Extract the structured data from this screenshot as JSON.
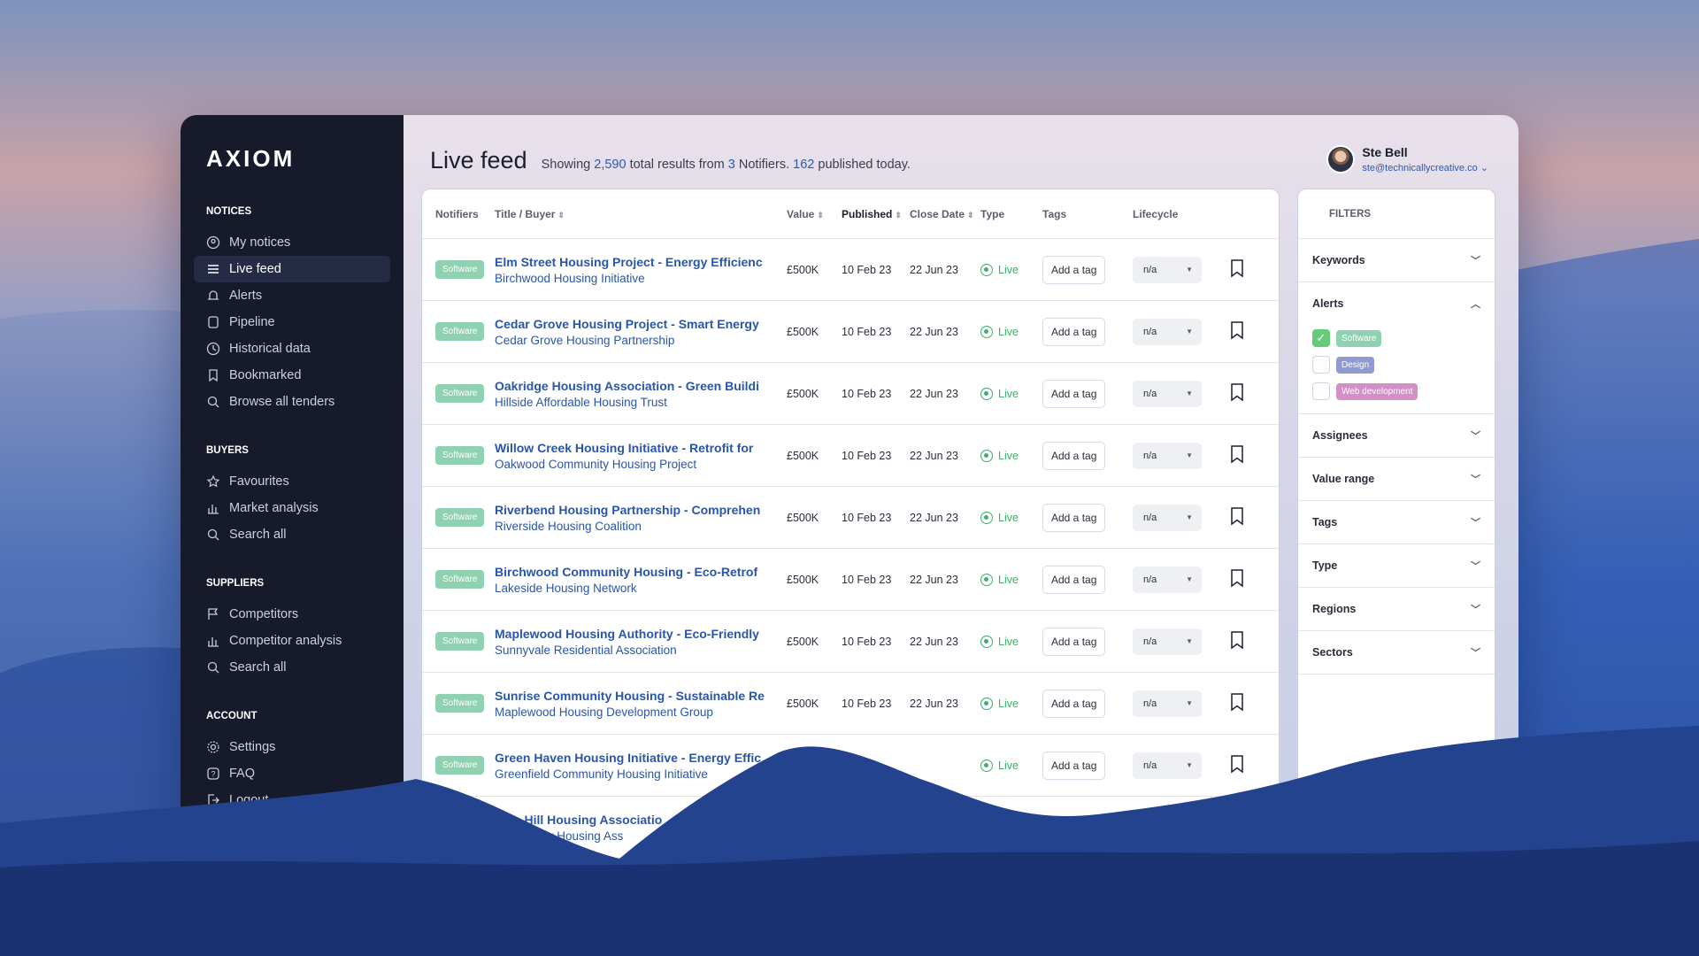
{
  "app": {
    "logo": "AXIOM"
  },
  "sidebar": {
    "sections": [
      {
        "title": "NOTICES",
        "items": [
          {
            "label": "My notices",
            "icon": "user-circle-icon"
          },
          {
            "label": "Live feed",
            "icon": "list-icon",
            "active": true
          },
          {
            "label": "Alerts",
            "icon": "bell-icon"
          },
          {
            "label": "Pipeline",
            "icon": "pipeline-icon"
          },
          {
            "label": "Historical data",
            "icon": "clock-icon"
          },
          {
            "label": "Bookmarked",
            "icon": "bookmark-icon"
          },
          {
            "label": "Browse all tenders",
            "icon": "search-icon"
          }
        ]
      },
      {
        "title": "BUYERS",
        "items": [
          {
            "label": "Favourites",
            "icon": "star-icon"
          },
          {
            "label": "Market analysis",
            "icon": "bar-chart-icon"
          },
          {
            "label": "Search all",
            "icon": "search-icon"
          }
        ]
      },
      {
        "title": "SUPPLIERS",
        "items": [
          {
            "label": "Competitors",
            "icon": "flag-icon"
          },
          {
            "label": "Competitor analysis",
            "icon": "bar-chart-icon"
          },
          {
            "label": "Search all",
            "icon": "search-icon"
          }
        ]
      },
      {
        "title": "ACCOUNT",
        "items": [
          {
            "label": "Settings",
            "icon": "gear-icon"
          },
          {
            "label": "FAQ",
            "icon": "help-icon"
          },
          {
            "label": "Logout",
            "icon": "logout-icon"
          }
        ]
      }
    ]
  },
  "header": {
    "title": "Live feed",
    "summary_prefix": "Showing",
    "total": "2,590",
    "summary_mid": "total results from",
    "notifiers": "3",
    "summary_mid2": "Notifiers.",
    "today": "162",
    "summary_suffix": "published today."
  },
  "user": {
    "name": "Ste Bell",
    "email": "ste@technicallycreative.co"
  },
  "table": {
    "headers": {
      "notifiers": "Notifiers",
      "title": "Title / Buyer",
      "value": "Value",
      "published": "Published",
      "close": "Close Date",
      "type": "Type",
      "tags": "Tags",
      "lifecycle": "Lifecycle"
    },
    "rows": [
      {
        "notifier": "Software",
        "title": "Elm Street Housing Project - Energy Efficienc",
        "buyer": "Birchwood Housing Initiative",
        "value": "£500K",
        "published": "10 Feb 23",
        "close": "22 Jun 23",
        "type": "Live",
        "tag": "Add a tag",
        "lifecycle": "n/a"
      },
      {
        "notifier": "Software",
        "title": "Cedar Grove Housing Project - Smart Energy",
        "buyer": "Cedar Grove Housing Partnership",
        "value": "£500K",
        "published": "10 Feb 23",
        "close": "22 Jun 23",
        "type": "Live",
        "tag": "Add a tag",
        "lifecycle": "n/a"
      },
      {
        "notifier": "Software",
        "title": "Oakridge Housing Association - Green Buildi",
        "buyer": "Hillside Affordable Housing Trust",
        "value": "£500K",
        "published": "10 Feb 23",
        "close": "22 Jun 23",
        "type": "Live",
        "tag": "Add a tag",
        "lifecycle": "n/a"
      },
      {
        "notifier": "Software",
        "title": "Willow Creek Housing Initiative - Retrofit for",
        "buyer": "Oakwood Community Housing Project",
        "value": "£500K",
        "published": "10 Feb 23",
        "close": "22 Jun 23",
        "type": "Live",
        "tag": "Add a tag",
        "lifecycle": "n/a"
      },
      {
        "notifier": "Software",
        "title": "Riverbend Housing Partnership - Comprehen",
        "buyer": "Riverside Housing Coalition",
        "value": "£500K",
        "published": "10 Feb 23",
        "close": "22 Jun 23",
        "type": "Live",
        "tag": "Add a tag",
        "lifecycle": "n/a"
      },
      {
        "notifier": "Software",
        "title": "Birchwood Community Housing - Eco-Retrof",
        "buyer": "Lakeside Housing Network",
        "value": "£500K",
        "published": "10 Feb 23",
        "close": "22 Jun 23",
        "type": "Live",
        "tag": "Add a tag",
        "lifecycle": "n/a"
      },
      {
        "notifier": "Software",
        "title": "Maplewood Housing Authority - Eco-Friendly",
        "buyer": "Sunnyvale Residential Association",
        "value": "£500K",
        "published": "10 Feb 23",
        "close": "22 Jun 23",
        "type": "Live",
        "tag": "Add a tag",
        "lifecycle": "n/a"
      },
      {
        "notifier": "Software",
        "title": "Sunrise Community Housing - Sustainable Re",
        "buyer": "Maplewood Housing Development Group",
        "value": "£500K",
        "published": "10 Feb 23",
        "close": "22 Jun 23",
        "type": "Live",
        "tag": "Add a tag",
        "lifecycle": "n/a"
      },
      {
        "notifier": "Software",
        "title": "Green Haven Housing Initiative - Energy Effic",
        "buyer": "Greenfield Community Housing Initiative",
        "value": "",
        "published": "",
        "close": "",
        "type": "Live",
        "tag": "Add a tag",
        "lifecycle": "n/a"
      },
      {
        "notifier": "",
        "title": "Pine Hill Housing Associatio",
        "buyer": "Pine Valley Housing Ass",
        "value": "",
        "published": "",
        "close": "",
        "type": "",
        "tag": "",
        "lifecycle": ""
      }
    ]
  },
  "filters": {
    "title": "FILTERS",
    "sections": [
      "Keywords",
      "Alerts",
      "Assignees",
      "Value range",
      "Tags",
      "Type",
      "Regions",
      "Sectors"
    ],
    "alerts": [
      {
        "label": "Software",
        "checked": true,
        "color": "#8fd1b1"
      },
      {
        "label": "Design",
        "checked": false,
        "color": "#8f9ad1"
      },
      {
        "label": "Web development",
        "checked": false,
        "color": "#d38fc6"
      }
    ]
  },
  "colors": {
    "accent": "#2d58b5",
    "sidebar": "#161a2b",
    "live": "#3fae6a"
  }
}
